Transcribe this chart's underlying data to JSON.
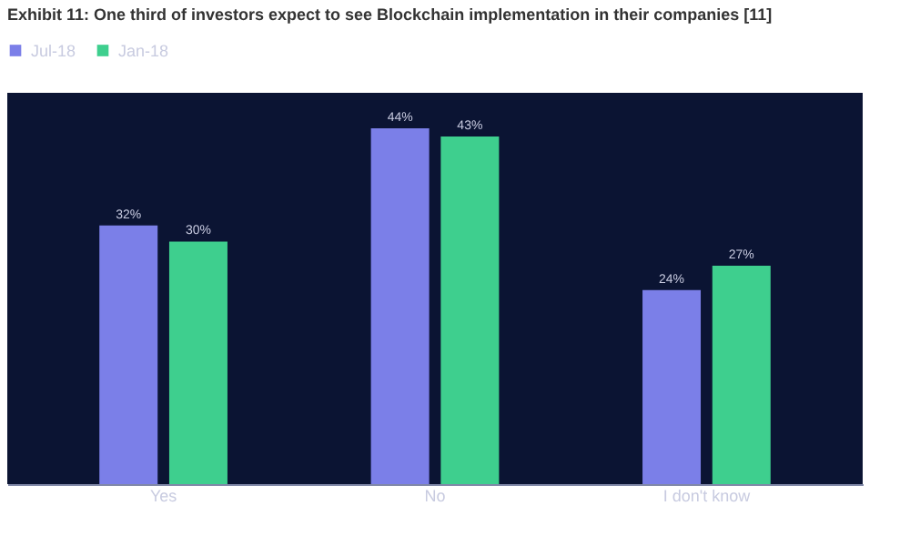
{
  "chart_data": {
    "type": "bar",
    "title": "Exhibit 11: One third of investors expect to see Blockchain implementation in their companies [11]",
    "categories": [
      "Yes",
      "No",
      "I don't know"
    ],
    "series": [
      {
        "name": "Jul-18",
        "color": "#7b7fe8",
        "values": [
          32,
          44,
          24
        ],
        "value_labels": [
          "32%",
          "44%",
          "24%"
        ]
      },
      {
        "name": "Jan-18",
        "color": "#3ecf8e",
        "values": [
          30,
          43,
          27
        ],
        "value_labels": [
          "30%",
          "43%",
          "27%"
        ]
      }
    ],
    "legend": "top",
    "grid": false,
    "tick_labels": "x"
  }
}
